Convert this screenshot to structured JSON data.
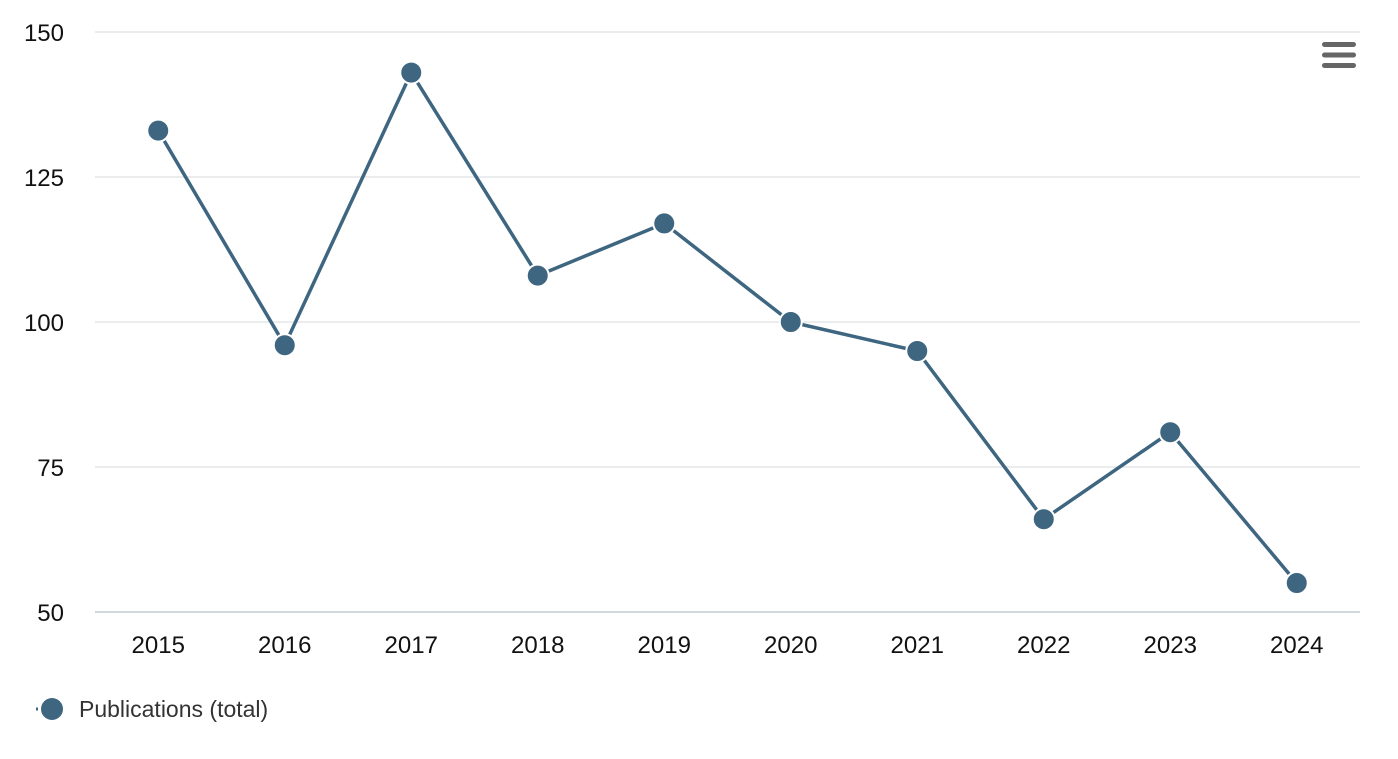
{
  "chart_data": {
    "type": "line",
    "categories": [
      "2015",
      "2016",
      "2017",
      "2018",
      "2019",
      "2020",
      "2021",
      "2022",
      "2023",
      "2024"
    ],
    "series": [
      {
        "name": "Publications (total)",
        "values": [
          133,
          96,
          143,
          108,
          117,
          100,
          95,
          66,
          81,
          55
        ],
        "color": "#3e6680"
      }
    ],
    "y_ticks": [
      "50",
      "75",
      "100",
      "125",
      "150"
    ],
    "ylim": [
      50,
      150
    ],
    "grid": true,
    "legend": "bottom-left",
    "title": "",
    "xlabel": "",
    "ylabel": ""
  },
  "menu": {
    "icon": "hamburger-menu-icon"
  }
}
